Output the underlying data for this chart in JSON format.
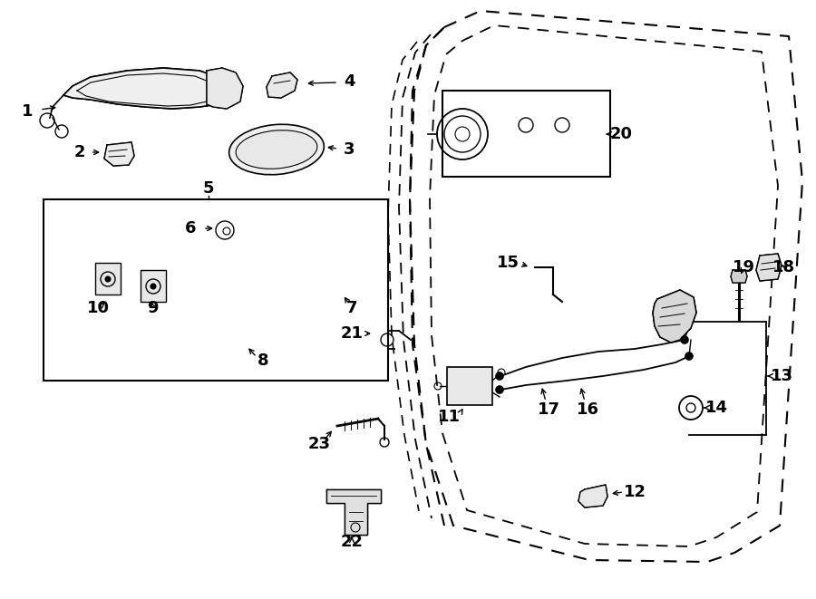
{
  "bg_color": "#ffffff",
  "line_color": "#000000",
  "figsize": [
    9.0,
    6.61
  ],
  "dpi": 100,
  "parts_font_size": 13,
  "label_font_size": 13
}
